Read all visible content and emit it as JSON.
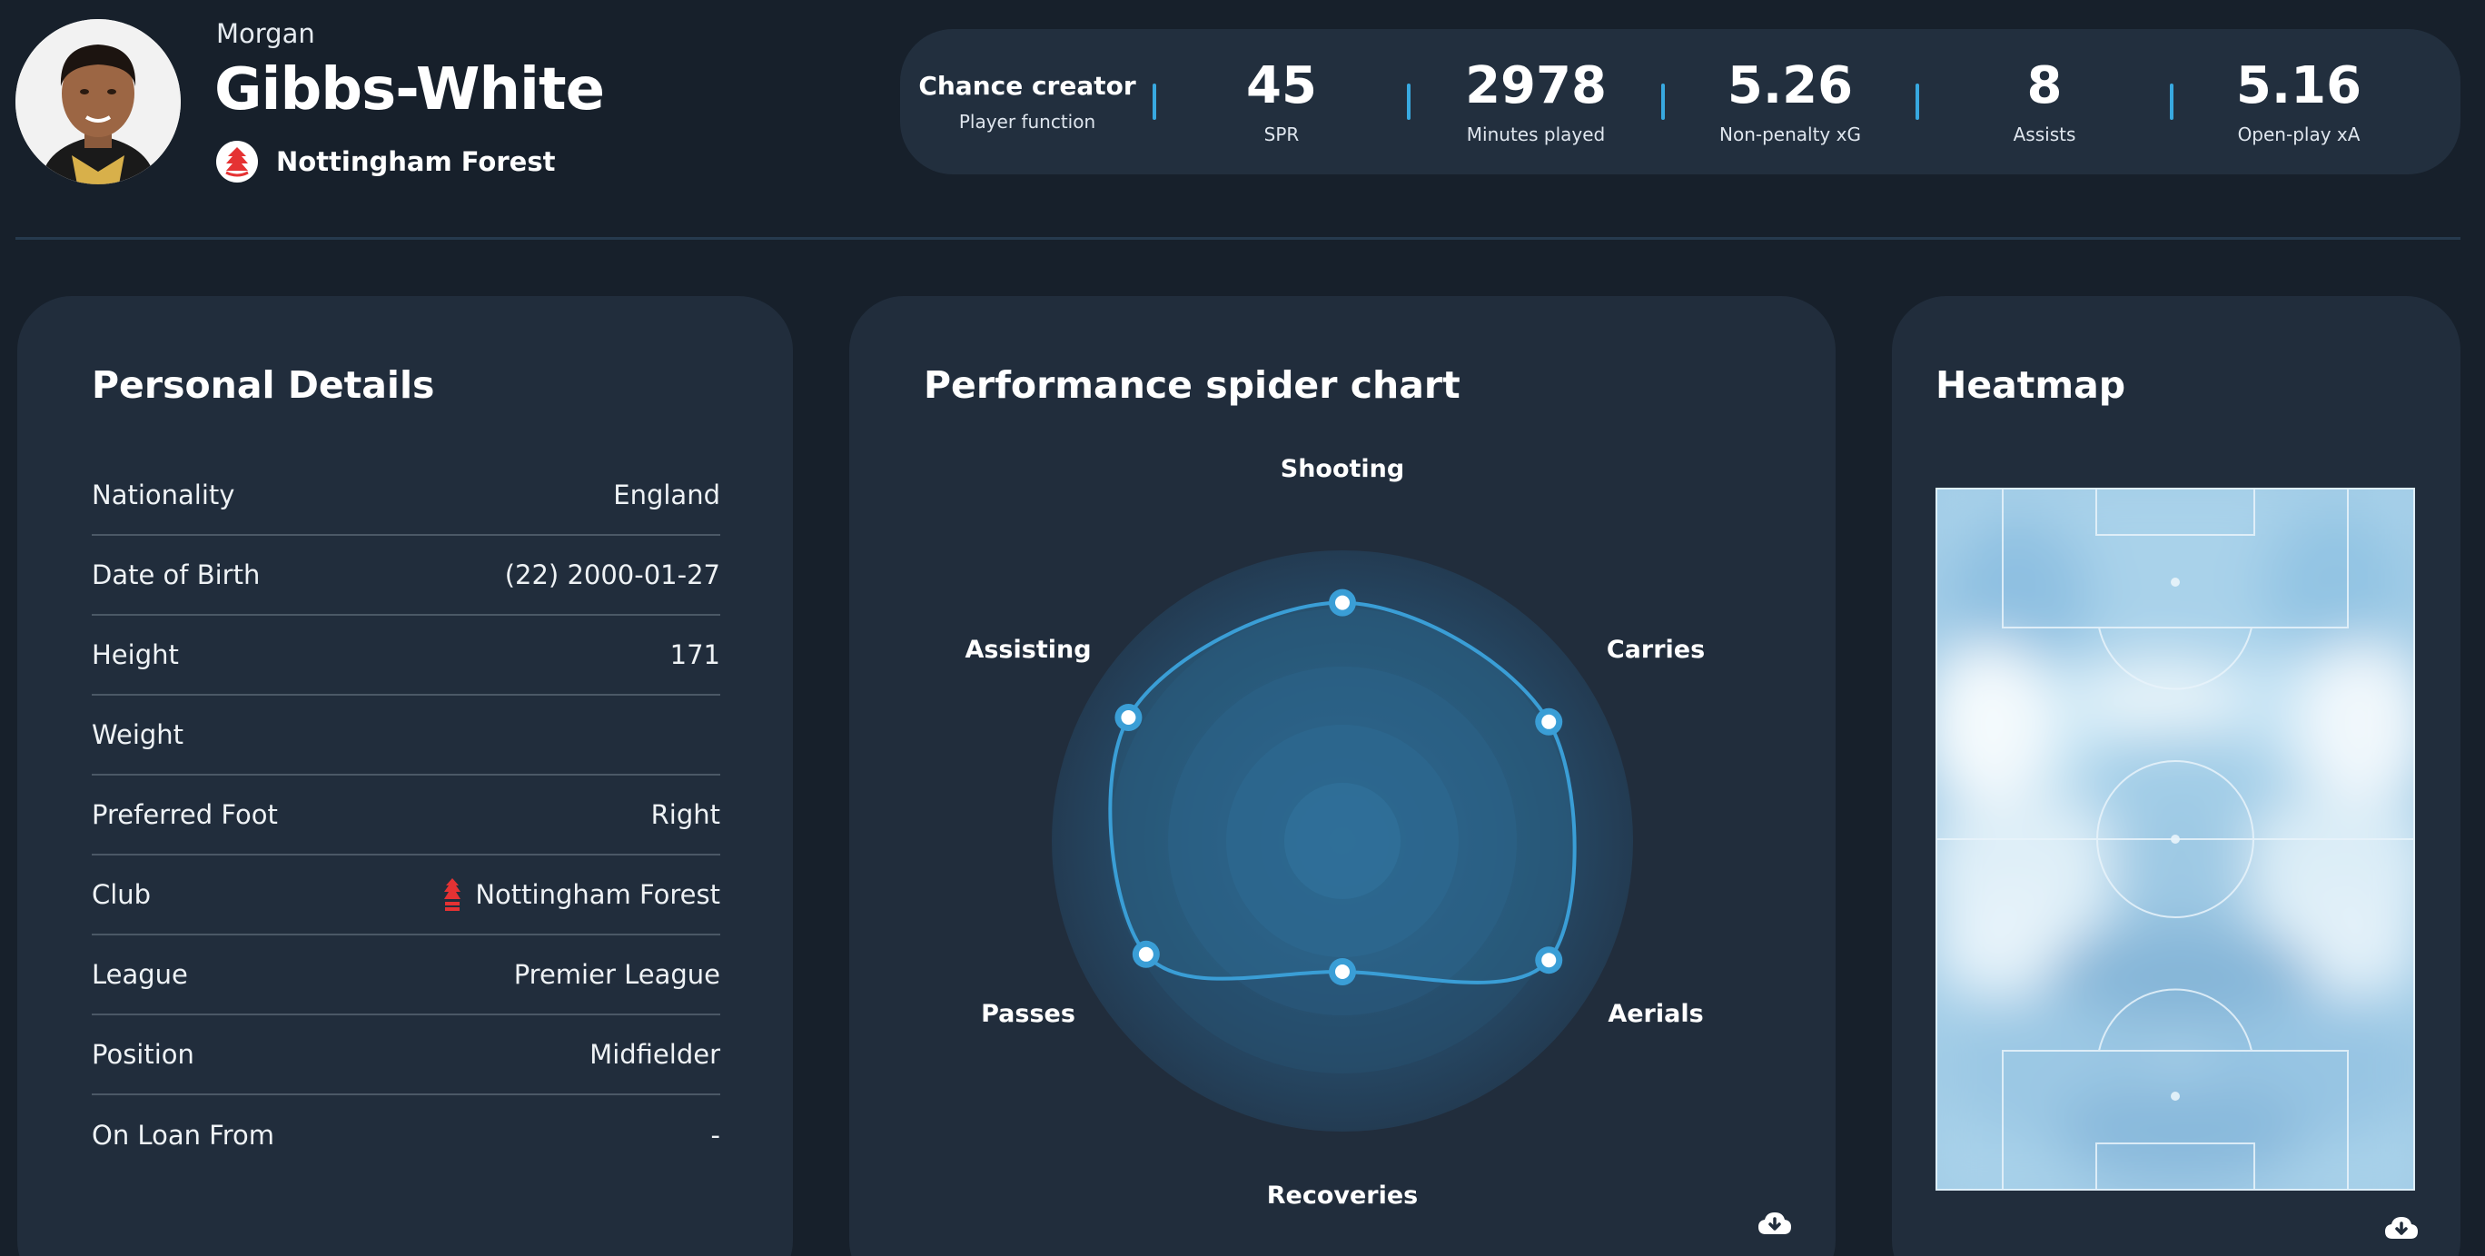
{
  "player": {
    "first_name": "Morgan",
    "last_name": "Gibbs-White",
    "club": "Nottingham Forest"
  },
  "stats": [
    {
      "value": "Chance creator",
      "label": "Player function"
    },
    {
      "value": "45",
      "label": "SPR"
    },
    {
      "value": "2978",
      "label": "Minutes played"
    },
    {
      "value": "5.26",
      "label": "Non-penalty xG"
    },
    {
      "value": "8",
      "label": "Assists"
    },
    {
      "value": "5.16",
      "label": "Open-play xA"
    }
  ],
  "personal_details": {
    "title": "Personal Details",
    "rows": [
      {
        "label": "Nationality",
        "value": "England"
      },
      {
        "label": "Date of Birth",
        "value": "(22) 2000-01-27"
      },
      {
        "label": "Height",
        "value": "171"
      },
      {
        "label": "Weight",
        "value": ""
      },
      {
        "label": "Preferred Foot",
        "value": "Right"
      },
      {
        "label": "Club",
        "value": "Nottingham Forest"
      },
      {
        "label": "League",
        "value": "Premier League"
      },
      {
        "label": "Position",
        "value": "Midfielder"
      },
      {
        "label": "On Loan From",
        "value": "-"
      }
    ]
  },
  "spider": {
    "title": "Performance spider chart",
    "axes": [
      "Shooting",
      "Carries",
      "Aerials",
      "Recoveries",
      "Passes",
      "Assisting"
    ]
  },
  "chart_data": {
    "type": "radar",
    "categories": [
      "Shooting",
      "Carries",
      "Aerials",
      "Recoveries",
      "Passes",
      "Assisting"
    ],
    "values": [
      0.82,
      0.82,
      0.82,
      0.45,
      0.78,
      0.85
    ],
    "grid": true
  },
  "heatmap": {
    "title": "Heatmap"
  },
  "colors": {
    "background": "#17202b",
    "card": "#212d3c",
    "accent": "#38a9e0",
    "club_red": "#e53233"
  },
  "icons": {
    "download": "cloud-download-icon",
    "club_crest": "forest-crest-icon"
  }
}
